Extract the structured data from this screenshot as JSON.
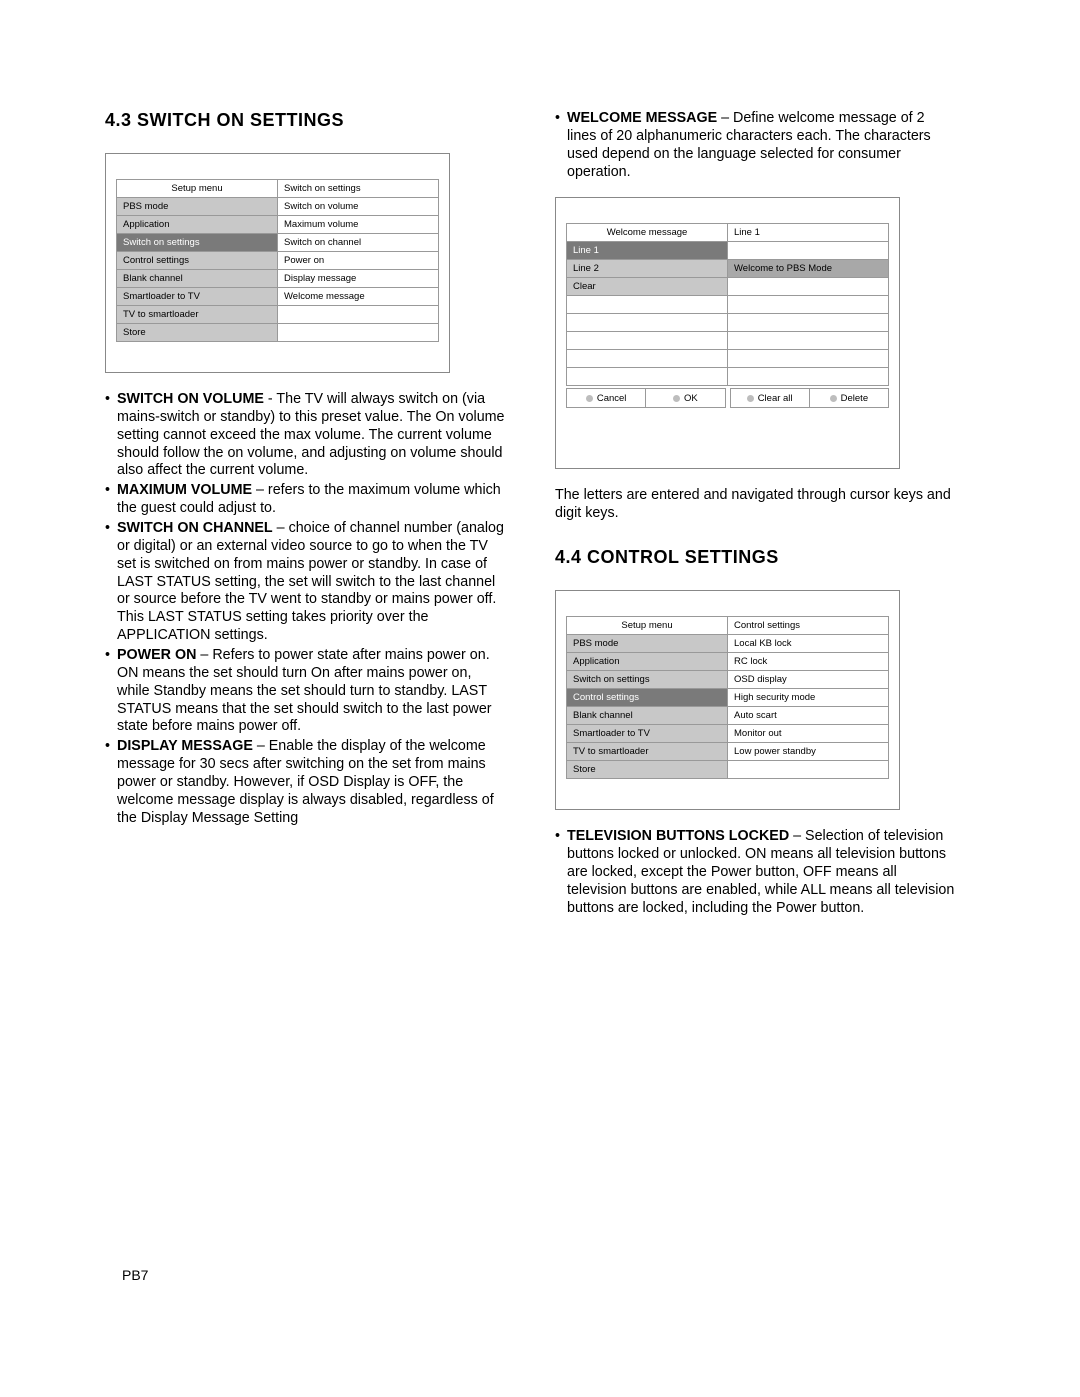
{
  "section43": {
    "heading": "4.3 SWITCH ON SETTINGS",
    "menu": {
      "header_left": "Setup menu",
      "header_right": "Switch on settings",
      "rows": [
        {
          "l": "PBS mode",
          "r": "Switch on volume"
        },
        {
          "l": "Application",
          "r": "Maximum volume"
        },
        {
          "l": "Switch on settings",
          "r": "Switch on channel",
          "selected": true
        },
        {
          "l": "Control settings",
          "r": "Power on"
        },
        {
          "l": "Blank channel",
          "r": "Display message"
        },
        {
          "l": "Smartloader to TV",
          "r": "Welcome message"
        },
        {
          "l": "TV to smartloader",
          "r": ""
        },
        {
          "l": "Store",
          "r": ""
        }
      ]
    },
    "bullets": [
      {
        "term": "SWITCH ON VOLUME",
        "sep": " - ",
        "text": "The TV will always switch on (via mains-switch or standby) to this preset value. The On volume setting cannot exceed the max volume. The current volume should follow the on volume, and adjusting on volume should also affect the current volume."
      },
      {
        "term": "MAXIMUM VOLUME",
        "sep": " – ",
        "text": "refers to the maximum volume which the guest could adjust to."
      },
      {
        "term": "SWITCH ON CHANNEL",
        "sep": " – ",
        "text": "choice of channel number (analog or digital) or an external video source to go to when the TV set is switched on from mains power or standby. In case of LAST STATUS setting, the set will switch to the last channel or source before the TV went to standby or mains power off. This LAST STATUS setting takes priority over the APPLICATION settings."
      },
      {
        "term": "POWER ON",
        "sep": " – ",
        "text": "Refers to power state after mains power on. ON means the set should turn On after mains power on, while Standby means the set should turn to standby. LAST STATUS means that the set should switch to the last power state before mains power off."
      },
      {
        "term": "DISPLAY MESSAGE",
        "sep": " – ",
        "text": "Enable the display of the welcome message for 30 secs after switching on the set from mains power or standby. However, if OSD Display is OFF, the welcome message display is always disabled, regardless of the Display Message Setting"
      }
    ]
  },
  "rightcol": {
    "welcome_bullet": {
      "term": "WELCOME MESSAGE",
      "sep": " – ",
      "text": "Define welcome message of 2 lines of 20 alphanumeric characters each. The characters used depend on the language selected for consumer operation."
    },
    "welcome_menu": {
      "header_left": "Welcome message",
      "header_right": "Line 1",
      "rows": [
        {
          "l": "Line 1",
          "r": "",
          "selected": true
        },
        {
          "l": "Line 2",
          "r": "Welcome to PBS Mode",
          "r_sel": true
        },
        {
          "l": "Clear",
          "r": ""
        },
        {
          "l": "",
          "r": "",
          "empty": true
        },
        {
          "l": "",
          "r": "",
          "empty": true
        },
        {
          "l": "",
          "r": "",
          "empty": true
        },
        {
          "l": "",
          "r": "",
          "empty": true
        },
        {
          "l": "",
          "r": "",
          "empty": true
        }
      ],
      "buttons_left": [
        "Cancel",
        "OK"
      ],
      "buttons_right": [
        "Clear all",
        "Delete"
      ]
    },
    "welcome_note": "The letters are entered and navigated through cursor keys and digit keys."
  },
  "section44": {
    "heading": "4.4 CONTROL SETTINGS",
    "menu": {
      "header_left": "Setup menu",
      "header_right": "Control settings",
      "rows": [
        {
          "l": "PBS mode",
          "r": "Local KB lock"
        },
        {
          "l": "Application",
          "r": "RC lock"
        },
        {
          "l": "Switch on settings",
          "r": "OSD display"
        },
        {
          "l": "Control settings",
          "r": "High security mode",
          "selected": true
        },
        {
          "l": "Blank channel",
          "r": "Auto scart"
        },
        {
          "l": "Smartloader to TV",
          "r": "Monitor out"
        },
        {
          "l": "TV to smartloader",
          "r": "Low power standby"
        },
        {
          "l": "Store",
          "r": ""
        }
      ]
    },
    "bullets": [
      {
        "term": "TELEVISION BUTTONS LOCKED",
        "sep": " – ",
        "text": "Selection of television buttons locked or unlocked. ON means all television buttons are locked, except the Power button, OFF means all television buttons are enabled, while ALL means all television buttons are locked, including the Power button."
      }
    ]
  },
  "footer": "PB7"
}
